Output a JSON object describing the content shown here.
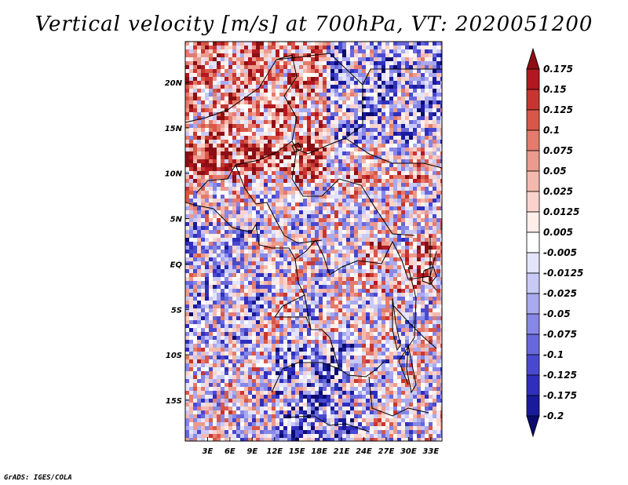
{
  "title": "Vertical velocity [m/s] at 700hPa, VT: 2020051200",
  "credit": "GrADS: IGES/COLA",
  "map": {
    "lat_labels": [
      "20N",
      "15N",
      "10N",
      "5N",
      "EQ",
      "5S",
      "10S",
      "15S"
    ],
    "lon_labels": [
      "3E",
      "6E",
      "9E",
      "12E",
      "15E",
      "18E",
      "21E",
      "24E",
      "27E",
      "30E",
      "33E"
    ],
    "lon_range": [
      0,
      34.5
    ],
    "lat_range": [
      -19.5,
      24.5
    ]
  },
  "colorbar": {
    "labels": [
      "0.175",
      "0.15",
      "0.125",
      "0.1",
      "0.075",
      "0.05",
      "0.025",
      "0.0125",
      "0.005",
      "-0.005",
      "-0.0125",
      "-0.025",
      "-0.05",
      "-0.075",
      "-0.1",
      "-0.125",
      "-0.175",
      "-0.2"
    ],
    "colors": [
      "#8b0f14",
      "#b2181f",
      "#c83530",
      "#d95748",
      "#e47b6c",
      "#ec9a8e",
      "#f4b9ae",
      "#f9d4cc",
      "#fdeeea",
      "#ffffff",
      "#e4e4fb",
      "#c9c9f6",
      "#a9a9ef",
      "#8787e6",
      "#6868dc",
      "#4949cf",
      "#2f2fbb",
      "#1a1a9c",
      "#0b0b6e"
    ]
  }
}
